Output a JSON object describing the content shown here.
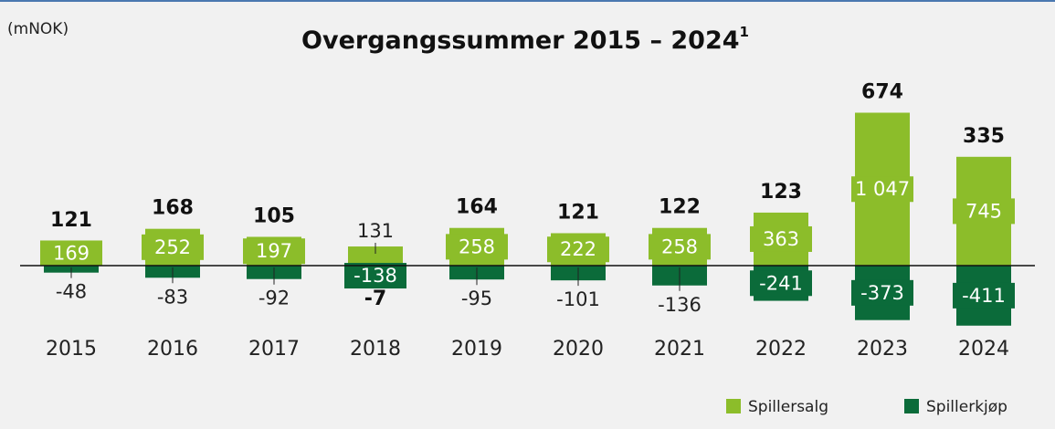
{
  "chart_data": {
    "type": "bar",
    "title": "Overgangssummer 2015 – 2024",
    "title_footnote": "1",
    "unit_label": "(mNOK)",
    "categories": [
      "2015",
      "2016",
      "2017",
      "2018",
      "2019",
      "2020",
      "2021",
      "2022",
      "2023",
      "2024"
    ],
    "series": [
      {
        "name": "Spillersalg",
        "color": "#8cbd2a",
        "values": [
          169,
          252,
          197,
          131,
          258,
          222,
          258,
          363,
          1047,
          745
        ],
        "value_labels": [
          "169",
          "252",
          "197",
          "131",
          "258",
          "222",
          "258",
          "363",
          "1 047",
          "745"
        ]
      },
      {
        "name": "Spillerkjøp",
        "color": "#0b6b3a",
        "values": [
          -48,
          -83,
          -92,
          -138,
          -95,
          -101,
          -136,
          -241,
          -373,
          -411
        ]
      }
    ],
    "totals": [
      121,
      168,
      105,
      -7,
      164,
      121,
      122,
      123,
      674,
      335
    ],
    "legend": "bottom-right"
  }
}
